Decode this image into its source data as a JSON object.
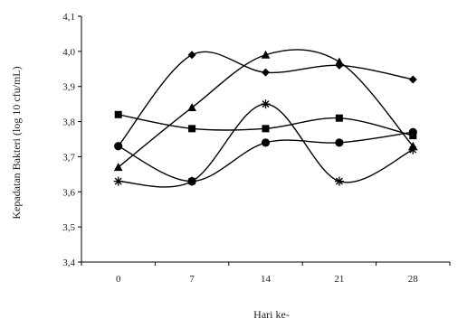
{
  "chart_data": {
    "type": "line",
    "title": "",
    "xlabel": "Hari ke-",
    "ylabel": "Kepadatan Bakteri  (log 10 cfu/mL)",
    "categories": [
      "0",
      "7",
      "14",
      "21",
      "28"
    ],
    "ylim": [
      3.4,
      4.1
    ],
    "yticks": [
      "3,4",
      "3,5",
      "3,6",
      "3,7",
      "3,8",
      "3,9",
      "4,0",
      "4,1"
    ],
    "grid": false,
    "legend": "none",
    "smooth": true,
    "series": [
      {
        "marker": "diamond",
        "values": [
          3.73,
          3.99,
          3.94,
          3.96,
          3.92
        ]
      },
      {
        "marker": "square",
        "values": [
          3.82,
          3.78,
          3.78,
          3.81,
          3.76
        ]
      },
      {
        "marker": "triangle",
        "values": [
          3.67,
          3.84,
          3.99,
          3.97,
          3.73
        ]
      },
      {
        "marker": "asterisk",
        "values": [
          3.63,
          3.63,
          3.85,
          3.63,
          3.72
        ]
      },
      {
        "marker": "circle",
        "values": [
          3.73,
          3.63,
          3.74,
          3.74,
          3.77
        ]
      }
    ],
    "line_color": "#000000"
  }
}
